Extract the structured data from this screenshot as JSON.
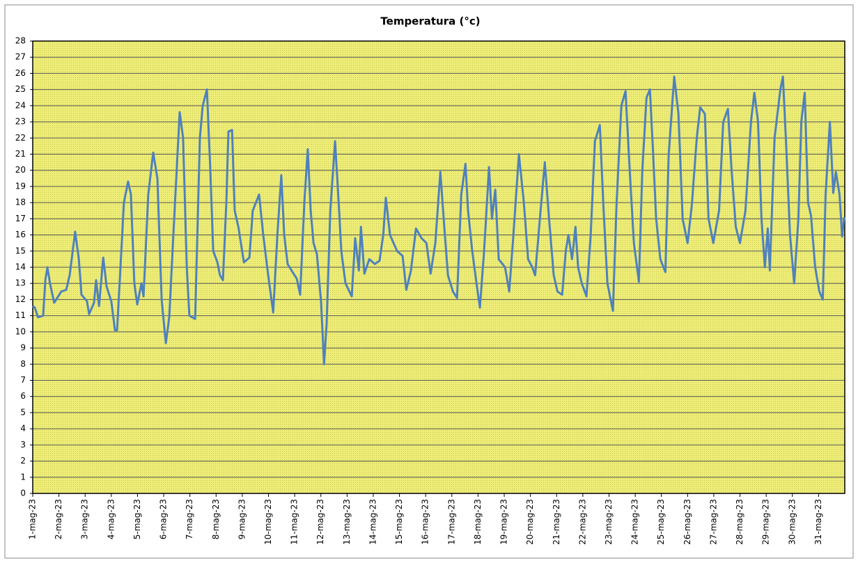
{
  "chart_data": {
    "type": "line",
    "title": "Temperatura (°c)",
    "color": "#4f81bd",
    "grid": true,
    "xlim": [
      0,
      31
    ],
    "ylim": [
      0,
      28
    ],
    "yticks": [
      0,
      1,
      2,
      3,
      4,
      5,
      6,
      7,
      8,
      9,
      10,
      11,
      12,
      13,
      14,
      15,
      16,
      17,
      18,
      19,
      20,
      21,
      22,
      23,
      24,
      25,
      26,
      27,
      28
    ],
    "xticks": [
      {
        "value": 0,
        "label": "1-mag-23"
      },
      {
        "value": 1,
        "label": "2-mag-23"
      },
      {
        "value": 2,
        "label": "3-mag-23"
      },
      {
        "value": 3,
        "label": "4-mag-23"
      },
      {
        "value": 4,
        "label": "5-mag-23"
      },
      {
        "value": 5,
        "label": "6-mag-23"
      },
      {
        "value": 6,
        "label": "7-mag-23"
      },
      {
        "value": 7,
        "label": "8-mag-23"
      },
      {
        "value": 8,
        "label": "9-mag-23"
      },
      {
        "value": 9,
        "label": "10-mag-23"
      },
      {
        "value": 10,
        "label": "11-mag-23"
      },
      {
        "value": 11,
        "label": "12-mag-23"
      },
      {
        "value": 12,
        "label": "13-mag-23"
      },
      {
        "value": 13,
        "label": "14-mag-23"
      },
      {
        "value": 14,
        "label": "15-mag-23"
      },
      {
        "value": 15,
        "label": "16-mag-23"
      },
      {
        "value": 16,
        "label": "17-mag-23"
      },
      {
        "value": 17,
        "label": "18-mag-23"
      },
      {
        "value": 18,
        "label": "19-mag-23"
      },
      {
        "value": 19,
        "label": "20-mag-23"
      },
      {
        "value": 20,
        "label": "21-mag-23"
      },
      {
        "value": 21,
        "label": "22-mag-23"
      },
      {
        "value": 22,
        "label": "23-mag-23"
      },
      {
        "value": 23,
        "label": "24-mag-23"
      },
      {
        "value": 24,
        "label": "25-mag-23"
      },
      {
        "value": 25,
        "label": "26-mag-23"
      },
      {
        "value": 26,
        "label": "27-mag-23"
      },
      {
        "value": 27,
        "label": "28-mag-23"
      },
      {
        "value": 28,
        "label": "29-mag-23"
      },
      {
        "value": 29,
        "label": "30-mag-23"
      },
      {
        "value": 30,
        "label": "31-mag-23"
      }
    ],
    "x": [
      0,
      0.08,
      0.2,
      0.4,
      0.48,
      0.56,
      0.66,
      0.82,
      1.09,
      1.28,
      1.41,
      1.62,
      1.76,
      1.86,
      2.07,
      2.15,
      2.34,
      2.42,
      2.53,
      2.69,
      2.82,
      3.0,
      3.14,
      3.22,
      3.35,
      3.48,
      3.64,
      3.75,
      3.88,
      3.99,
      4.15,
      4.23,
      4.41,
      4.6,
      4.76,
      4.92,
      5.08,
      5.21,
      5.4,
      5.61,
      5.74,
      5.88,
      5.98,
      6.2,
      6.38,
      6.49,
      6.65,
      6.78,
      6.89,
      7.05,
      7.15,
      7.26,
      7.39,
      7.47,
      7.61,
      7.71,
      7.85,
      8.06,
      8.27,
      8.4,
      8.64,
      8.8,
      8.99,
      9.18,
      9.34,
      9.49,
      9.6,
      9.73,
      9.92,
      10.08,
      10.21,
      10.37,
      10.5,
      10.61,
      10.72,
      10.85,
      11.01,
      11.12,
      11.22,
      11.36,
      11.54,
      11.68,
      11.78,
      11.94,
      12.18,
      12.31,
      12.45,
      12.53,
      12.66,
      12.85,
      13.06,
      13.24,
      13.38,
      13.48,
      13.64,
      13.91,
      14.12,
      14.26,
      14.44,
      14.63,
      14.84,
      15.03,
      15.19,
      15.37,
      15.56,
      15.69,
      15.85,
      16.04,
      16.2,
      16.36,
      16.52,
      16.62,
      16.78,
      16.94,
      17.07,
      17.23,
      17.42,
      17.53,
      17.66,
      17.79,
      18.03,
      18.19,
      18.35,
      18.56,
      18.75,
      18.91,
      19.07,
      19.18,
      19.36,
      19.55,
      19.71,
      19.89,
      20.03,
      20.21,
      20.35,
      20.45,
      20.59,
      20.72,
      20.82,
      20.96,
      21.14,
      21.3,
      21.46,
      21.65,
      21.78,
      21.94,
      22.15,
      22.29,
      22.47,
      22.63,
      22.79,
      22.95,
      23.14,
      23.27,
      23.43,
      23.56,
      23.67,
      23.8,
      23.96,
      24.15,
      24.28,
      24.49,
      24.65,
      24.81,
      25.0,
      25.16,
      25.35,
      25.48,
      25.66,
      25.8,
      25.98,
      26.2,
      26.36,
      26.54,
      26.68,
      26.84,
      27.0,
      27.21,
      27.42,
      27.55,
      27.69,
      27.82,
      27.95,
      28.06,
      28.14,
      28.32,
      28.54,
      28.64,
      28.75,
      28.91,
      29.07,
      29.23,
      29.34,
      29.47,
      29.6,
      29.71,
      29.87,
      30.03,
      30.16,
      30.27,
      30.43,
      30.56,
      30.66,
      30.8,
      30.9,
      30.98
    ],
    "series": [
      {
        "name": "Temperatura",
        "color": "#4f81bd",
        "values": [
          11.6,
          11.5,
          10.9,
          11.0,
          13.2,
          14.0,
          13.0,
          11.8,
          12.5,
          12.6,
          13.5,
          16.2,
          14.5,
          12.3,
          11.9,
          11.1,
          11.8,
          13.2,
          11.6,
          14.6,
          12.8,
          11.9,
          10.1,
          10.1,
          14.0,
          18.0,
          19.3,
          18.5,
          13.0,
          11.7,
          13.0,
          12.2,
          18.5,
          21.1,
          19.5,
          12.0,
          9.3,
          10.9,
          17.0,
          23.6,
          22.0,
          14.0,
          11.0,
          10.8,
          22.0,
          24.0,
          25.0,
          20.0,
          15.0,
          14.3,
          13.5,
          13.2,
          18.0,
          22.4,
          22.5,
          17.5,
          16.5,
          14.3,
          14.6,
          17.5,
          18.5,
          16.0,
          13.5,
          11.2,
          16.0,
          19.7,
          16.0,
          14.2,
          13.7,
          13.3,
          12.3,
          18.0,
          21.3,
          17.5,
          15.5,
          14.8,
          11.8,
          8.0,
          10.5,
          17.5,
          21.8,
          18.0,
          15.0,
          13.0,
          12.2,
          15.8,
          13.8,
          16.5,
          13.6,
          14.5,
          14.2,
          14.4,
          16.0,
          18.3,
          16.0,
          15.0,
          14.7,
          12.6,
          13.8,
          16.4,
          15.8,
          15.5,
          13.6,
          15.5,
          19.9,
          17.0,
          13.5,
          12.5,
          12.1,
          18.5,
          20.4,
          17.5,
          15.0,
          13.0,
          11.5,
          15.0,
          20.2,
          17.0,
          18.8,
          14.5,
          14.0,
          12.5,
          16.0,
          21.0,
          18.0,
          14.5,
          14.0,
          13.5,
          17.0,
          20.5,
          17.0,
          13.5,
          12.5,
          12.3,
          15.0,
          16.0,
          14.5,
          16.5,
          14.0,
          13.0,
          12.2,
          16.0,
          21.8,
          22.8,
          18.0,
          13.0,
          11.3,
          18.0,
          24.0,
          24.9,
          20.0,
          15.5,
          13.1,
          20.0,
          24.5,
          25.0,
          21.5,
          17.0,
          14.5,
          13.7,
          21.0,
          25.8,
          23.5,
          17.0,
          15.5,
          17.8,
          22.0,
          23.9,
          23.5,
          17.0,
          15.5,
          17.5,
          23.0,
          23.8,
          20.0,
          16.5,
          15.5,
          17.5,
          23.0,
          24.8,
          23.0,
          17.0,
          14.0,
          16.4,
          13.8,
          22.0,
          25.0,
          25.8,
          22.0,
          16.0,
          13.0,
          17.0,
          23.0,
          24.8,
          18.0,
          17.2,
          14.0,
          12.5,
          12.0,
          18.5,
          23.0,
          18.6,
          19.9,
          18.5,
          15.9,
          17.1
        ]
      }
    ]
  }
}
